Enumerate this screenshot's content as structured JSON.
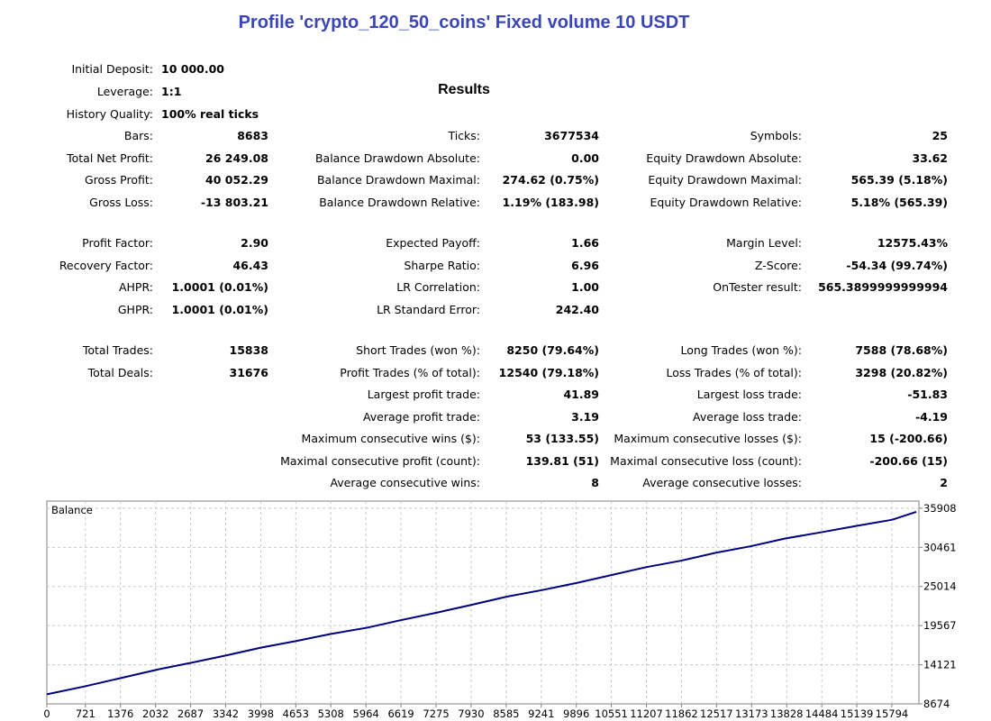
{
  "title": "Profile 'crypto_120_50_coins' Fixed volume 10 USDT",
  "results_heading": "Results",
  "header_rows": [
    {
      "label": "Initial Deposit:",
      "value": "10 000.00"
    },
    {
      "label": "Leverage:",
      "value": "1:1"
    },
    {
      "label": "History Quality:",
      "value": "100% real ticks"
    }
  ],
  "col1": [
    {
      "label": "Bars:",
      "value": "8683"
    },
    {
      "label": "Total Net Profit:",
      "value": "26 249.08"
    },
    {
      "label": "Gross Profit:",
      "value": "40 052.29"
    },
    {
      "label": "Gross Loss:",
      "value": "-13 803.21"
    },
    {
      "label": "Profit Factor:",
      "value": "2.90"
    },
    {
      "label": "Recovery Factor:",
      "value": "46.43"
    },
    {
      "label": "AHPR:",
      "value": "1.0001 (0.01%)"
    },
    {
      "label": "GHPR:",
      "value": "1.0001 (0.01%)"
    },
    {
      "label": "Total Trades:",
      "value": "15838"
    },
    {
      "label": "Total Deals:",
      "value": "31676"
    }
  ],
  "col2": [
    {
      "label": "Ticks:",
      "value": "3677534"
    },
    {
      "label": "Balance Drawdown Absolute:",
      "value": "0.00"
    },
    {
      "label": "Balance Drawdown Maximal:",
      "value": "274.62 (0.75%)"
    },
    {
      "label": "Balance Drawdown Relative:",
      "value": "1.19% (183.98)"
    },
    {
      "label": "Expected Payoff:",
      "value": "1.66"
    },
    {
      "label": "Sharpe Ratio:",
      "value": "6.96"
    },
    {
      "label": "LR Correlation:",
      "value": "1.00"
    },
    {
      "label": "LR Standard Error:",
      "value": "242.40"
    },
    {
      "label": "Short Trades (won %):",
      "value": "8250 (79.64%)"
    },
    {
      "label": "Profit Trades (% of total):",
      "value": "12540 (79.18%)"
    },
    {
      "label": "Largest profit trade:",
      "value": "41.89"
    },
    {
      "label": "Average profit trade:",
      "value": "3.19"
    },
    {
      "label": "Maximum consecutive wins ($):",
      "value": "53 (133.55)"
    },
    {
      "label": "Maximal consecutive profit (count):",
      "value": "139.81 (51)"
    },
    {
      "label": "Average consecutive wins:",
      "value": "8"
    }
  ],
  "col3": [
    {
      "label": "Symbols:",
      "value": "25"
    },
    {
      "label": "Equity Drawdown Absolute:",
      "value": "33.62"
    },
    {
      "label": "Equity Drawdown Maximal:",
      "value": "565.39 (5.18%)"
    },
    {
      "label": "Equity Drawdown Relative:",
      "value": "5.18% (565.39)"
    },
    {
      "label": "Margin Level:",
      "value": "12575.43%"
    },
    {
      "label": "Z-Score:",
      "value": "-54.34 (99.74%)"
    },
    {
      "label": "OnTester result:",
      "value": "565.3899999999994"
    },
    {
      "label": "Long Trades (won %):",
      "value": "7588 (78.68%)"
    },
    {
      "label": "Loss Trades (% of total):",
      "value": "3298 (20.82%)"
    },
    {
      "label": "Largest loss trade:",
      "value": "-51.83"
    },
    {
      "label": "Average loss trade:",
      "value": "-4.19"
    },
    {
      "label": "Maximum consecutive losses ($):",
      "value": "15 (-200.66)"
    },
    {
      "label": "Maximal consecutive loss (count):",
      "value": "-200.66 (15)"
    },
    {
      "label": "Average consecutive losses:",
      "value": "2"
    }
  ],
  "chart_data": {
    "type": "line",
    "title": "Balance",
    "line_color": "#000080",
    "x_ticks": [
      0,
      721,
      1376,
      2032,
      2687,
      3342,
      3998,
      4653,
      5308,
      5964,
      6619,
      7275,
      7930,
      8585,
      9241,
      9896,
      10551,
      11207,
      11862,
      12517,
      13173,
      13828,
      14484,
      15139,
      15794
    ],
    "y_ticks": [
      8674,
      14121,
      19567,
      25014,
      30461,
      35908
    ],
    "xlim": [
      0,
      16300
    ],
    "ylim": [
      8674,
      36900
    ],
    "grid": true,
    "series": [
      {
        "x": [
          0,
          700,
          1400,
          2100,
          2700,
          3400,
          4000,
          4650,
          5300,
          6000,
          6600,
          7300,
          7900,
          8600,
          9250,
          9900,
          10550,
          11200,
          11850,
          12500,
          13150,
          13800,
          14500,
          15100,
          15800,
          16250
        ],
        "y": [
          10000,
          11100,
          12300,
          13500,
          14400,
          15500,
          16500,
          17400,
          18400,
          19300,
          20300,
          21400,
          22400,
          23600,
          24500,
          25500,
          26600,
          27700,
          28600,
          29700,
          30600,
          31700,
          32600,
          33400,
          34300,
          35400
        ]
      }
    ]
  }
}
